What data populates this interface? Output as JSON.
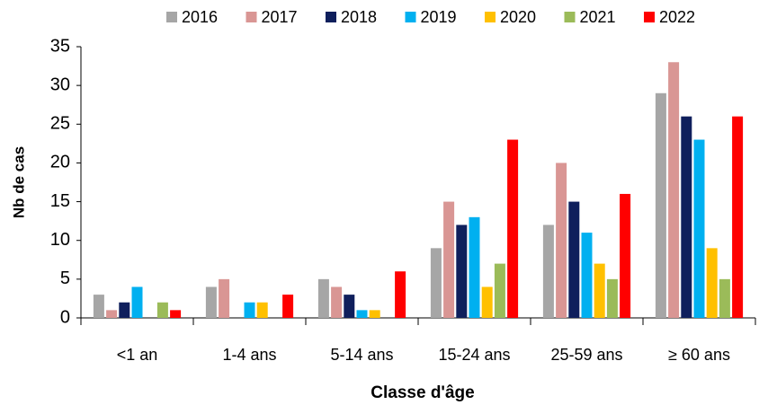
{
  "chart_data": {
    "type": "bar",
    "xlabel": "Classe d'âge",
    "ylabel": "Nb de cas",
    "categories": [
      "<1 an",
      "1-4 ans",
      "5-14 ans",
      "15-24 ans",
      "25-59 ans",
      "≥ 60 ans"
    ],
    "series": [
      {
        "name": "2016",
        "color": "#a6a6a6",
        "values": [
          3,
          4,
          5,
          9,
          12,
          29
        ]
      },
      {
        "name": "2017",
        "color": "#d99694",
        "values": [
          1,
          5,
          4,
          15,
          20,
          33
        ]
      },
      {
        "name": "2018",
        "color": "#0f1f5c",
        "values": [
          2,
          0,
          3,
          12,
          15,
          26
        ]
      },
      {
        "name": "2019",
        "color": "#00b0f0",
        "values": [
          4,
          2,
          1,
          13,
          11,
          23
        ]
      },
      {
        "name": "2020",
        "color": "#ffc000",
        "values": [
          0,
          2,
          1,
          4,
          7,
          9
        ]
      },
      {
        "name": "2021",
        "color": "#9bbb59",
        "values": [
          2,
          0,
          0,
          7,
          5,
          5
        ]
      },
      {
        "name": "2022",
        "color": "#ff0000",
        "values": [
          1,
          3,
          6,
          23,
          16,
          26
        ]
      }
    ],
    "ylim": [
      0,
      35
    ],
    "yticks": [
      0,
      5,
      10,
      15,
      20,
      25,
      30,
      35
    ],
    "grid": false,
    "legend": "top"
  }
}
